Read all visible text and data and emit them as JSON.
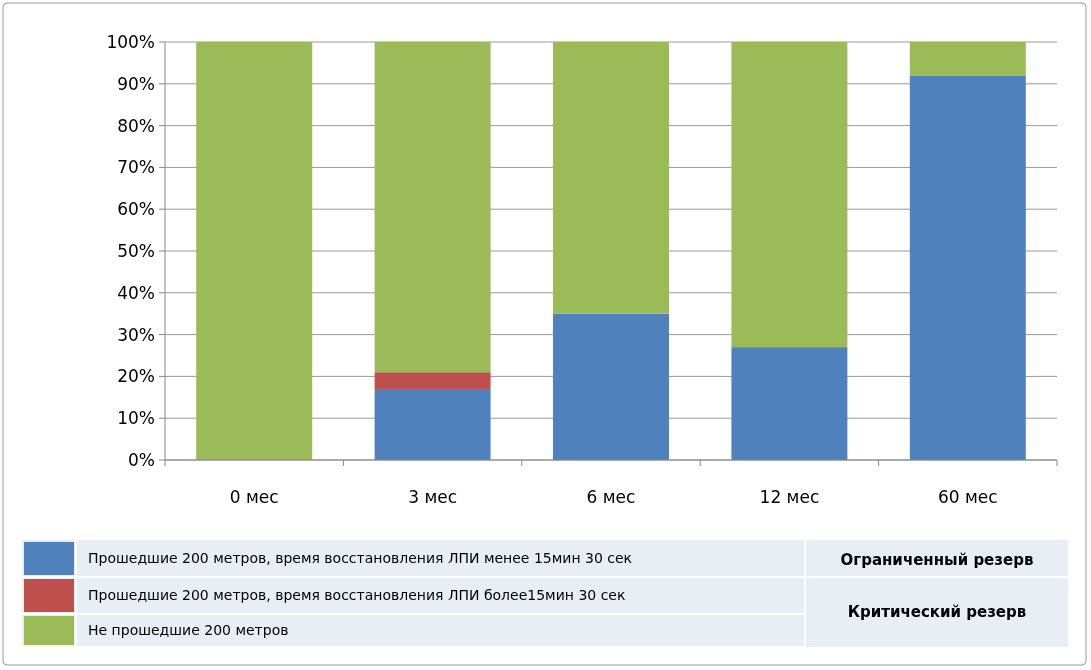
{
  "chart_data": {
    "type": "bar",
    "stacked": true,
    "categories": [
      "0 мес",
      "3 мес",
      "6 мес",
      "12 мес",
      "60 мес"
    ],
    "series": [
      {
        "name": "Прошедшие 200 метров, время восстановления ЛПИ менее 15мин 30 сек",
        "color": "#4f81bd",
        "values": [
          0,
          17,
          35,
          27,
          92
        ]
      },
      {
        "name": "Прошедшие 200 метров, время восстановления ЛПИ более15мин 30 сек",
        "color": "#c0504d",
        "values": [
          0,
          4,
          0,
          0,
          0
        ]
      },
      {
        "name": "Не прошедшие 200 метров",
        "color": "#9bbb59",
        "values": [
          100,
          79,
          65,
          73,
          8
        ]
      }
    ],
    "ylim": [
      0,
      100
    ],
    "yticks": [
      {
        "value": 0,
        "label": "0%"
      },
      {
        "value": 10,
        "label": "10%"
      },
      {
        "value": 20,
        "label": "20%"
      },
      {
        "value": 30,
        "label": "30%"
      },
      {
        "value": 40,
        "label": "40%"
      },
      {
        "value": 50,
        "label": "50%"
      },
      {
        "value": 60,
        "label": "60%"
      },
      {
        "value": 70,
        "label": "70%"
      },
      {
        "value": 80,
        "label": "80%"
      },
      {
        "value": 90,
        "label": "90%"
      },
      {
        "value": 100,
        "label": "100%"
      }
    ],
    "grid": "y",
    "legend": "bottom",
    "annotations": [
      "Ограниченный резерв",
      "Критический резерв"
    ]
  }
}
